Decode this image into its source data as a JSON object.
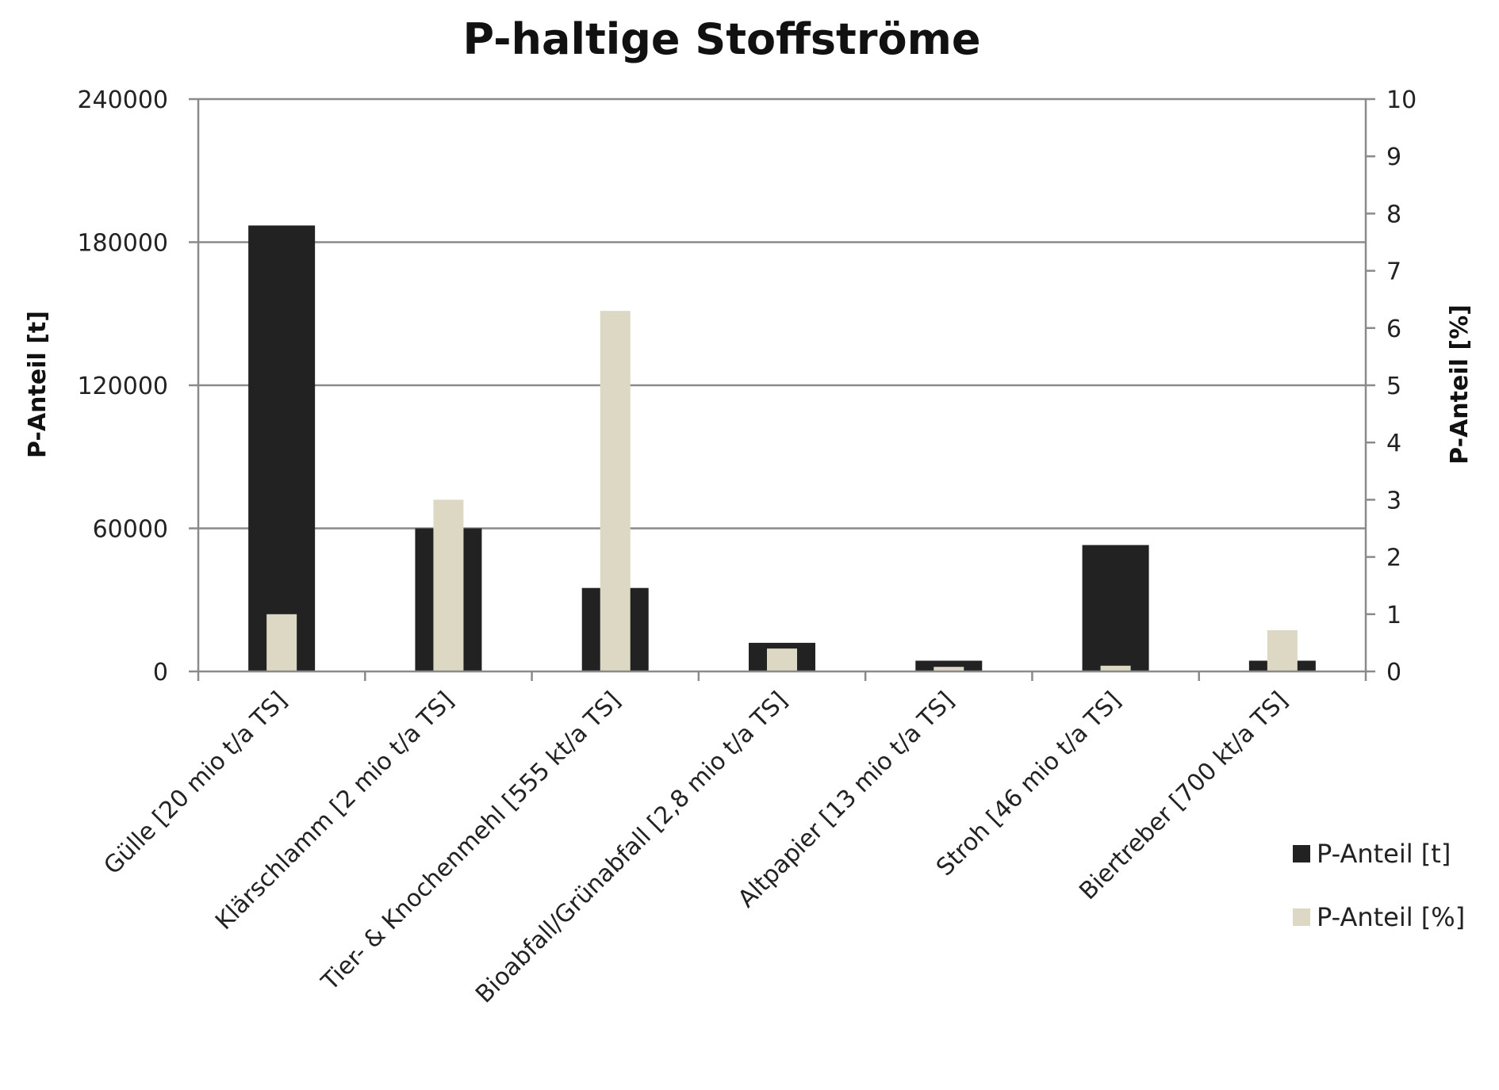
{
  "chart_data": {
    "type": "bar",
    "title": "P-haltige Stoffströme",
    "categories": [
      "Gülle [20 mio t/a TS]",
      "Klärschlamm [2 mio t/a TS]",
      "Tier- & Knochenmehl [555 kt/a TS]",
      "Bioabfall/Grünabfall [2,8 mio t/a TS]",
      "Altpapier [13 mio t/a TS]",
      "Stroh [46 mio t/a TS]",
      "Biertreber [700 kt/a TS]"
    ],
    "series": [
      {
        "name": "P-Anteil [t]",
        "axis": "left",
        "color": "#222222",
        "values": [
          187000,
          60000,
          35000,
          12000,
          4500,
          53000,
          4500
        ]
      },
      {
        "name": "P-Anteil [%]",
        "axis": "right",
        "color": "#ddd8c4",
        "values": [
          1.0,
          3.0,
          6.3,
          0.4,
          0.08,
          0.1,
          0.72
        ]
      }
    ],
    "ylabel": "P-Anteil [t]",
    "ylabel_right": "P-Anteil [%]",
    "ylim": [
      0,
      240000
    ],
    "ylim_right": [
      0,
      10
    ],
    "yticks": [
      0,
      60000,
      120000,
      180000,
      240000
    ],
    "yticks_right": [
      0,
      1,
      2,
      3,
      4,
      5,
      6,
      7,
      8,
      9,
      10
    ],
    "grid": true,
    "legend": "bottom-right"
  }
}
